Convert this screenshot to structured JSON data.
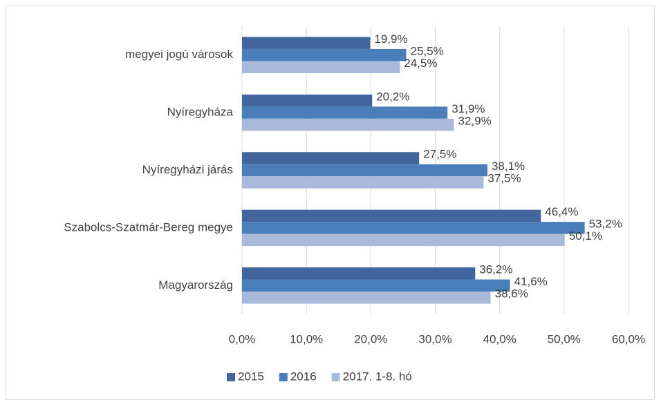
{
  "chart_data": {
    "type": "hbar",
    "categories": [
      "megyei jogú városok",
      "Nyíregyháza",
      "Nyíregyházi járás",
      "Szabolcs-Szatmár-Bereg megye",
      "Magyarország"
    ],
    "series": [
      {
        "name": "2015",
        "color": "#41669d",
        "values": [
          19.9,
          20.2,
          27.5,
          46.4,
          36.2
        ],
        "value_labels": [
          "19,9%",
          "20,2%",
          "27,5%",
          "46,4%",
          "36,2%"
        ]
      },
      {
        "name": "2016",
        "color": "#4a7ebb",
        "values": [
          25.5,
          31.9,
          38.1,
          53.2,
          41.6
        ],
        "value_labels": [
          "25,5%",
          "31,9%",
          "38,1%",
          "53,2%",
          "41,6%"
        ]
      },
      {
        "name": "2017. 1-8. hó",
        "color": "#a9b9d9",
        "values": [
          24.5,
          32.9,
          37.5,
          50.1,
          38.6
        ],
        "value_labels": [
          "24,5%",
          "32,9%",
          "37,5%",
          "50,1%",
          "38,6%"
        ]
      }
    ],
    "xlim": [
      0,
      60
    ],
    "xticks": [
      {
        "value": 0,
        "label": "0,0%"
      },
      {
        "value": 10,
        "label": "10,0%"
      },
      {
        "value": 20,
        "label": "20,0%"
      },
      {
        "value": 30,
        "label": "30,0%"
      },
      {
        "value": 40,
        "label": "40,0%"
      },
      {
        "value": 50,
        "label": "50,0%"
      },
      {
        "value": 60,
        "label": "60,0%"
      }
    ],
    "grid": true,
    "legend": "bottom"
  }
}
